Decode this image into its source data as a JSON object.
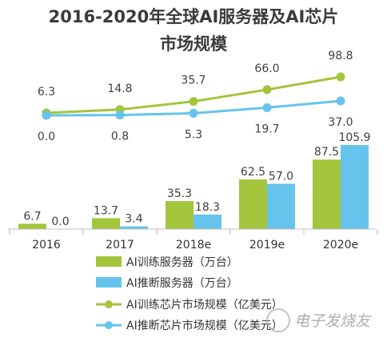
{
  "chart_data": {
    "title_line1": "2016-2020年全球AI服务器及AI芯片",
    "title_line2": "市场规模",
    "categories": [
      "2016",
      "2017",
      "2018e",
      "2019e",
      "2020e"
    ],
    "bar_series": [
      {
        "name": "AI训练服务器（万台）",
        "values": [
          6.7,
          13.7,
          35.3,
          62.5,
          87.5
        ],
        "color": "#a2c53c"
      },
      {
        "name": "AI推断服务器（万台）",
        "values": [
          0.0,
          3.4,
          18.3,
          57.0,
          105.9
        ],
        "color": "#66c4ec"
      }
    ],
    "line_series": [
      {
        "name": "AI训练芯片市场规模（亿美元）",
        "values": [
          6.3,
          14.8,
          35.7,
          66.0,
          98.8
        ],
        "color": "#a2c53c"
      },
      {
        "name": "AI推断芯片市场规模（亿美元）",
        "values": [
          0.0,
          0.8,
          5.3,
          19.7,
          37.0
        ],
        "color": "#66c4ec"
      }
    ],
    "bar_labels": [
      [
        "6.7",
        "13.7",
        "35.3",
        "62.5",
        "87.5"
      ],
      [
        "0.0",
        "3.4",
        "18.3",
        "57.0",
        "105.9"
      ]
    ],
    "line_labels": [
      [
        "6.3",
        "14.8",
        "35.7",
        "66.0",
        "98.8"
      ],
      [
        "0.0",
        "0.8",
        "5.3",
        "19.7",
        "37.0"
      ]
    ],
    "watermark": "电子发烧友",
    "grid": false,
    "legend_position": "bottom"
  }
}
